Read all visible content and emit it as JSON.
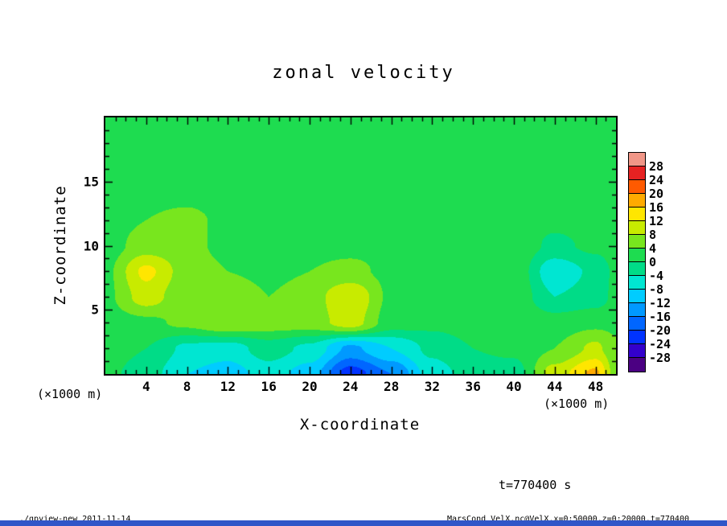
{
  "title": "zonal velocity",
  "axes": {
    "x_label": "X-coordinate",
    "z_label": "Z-coordinate",
    "x_unit": "(×1000 m)",
    "z_unit": "(×1000 m)",
    "x_ticks": [
      4,
      8,
      12,
      16,
      20,
      24,
      28,
      32,
      36,
      40,
      44,
      48
    ],
    "z_ticks": [
      5,
      10,
      15
    ]
  },
  "colorbar": {
    "labels": [
      28,
      24,
      20,
      16,
      12,
      8,
      4,
      0,
      -4,
      -8,
      -12,
      -16,
      -20,
      -24,
      -28
    ]
  },
  "annotations": {
    "time_label": "t=770400 s"
  },
  "footer": {
    "left": "./gpview-new  2011-11-14",
    "right": "MarsCond_VelX.nc@VelX,x=0:50000,z=0:20000,t=770400"
  },
  "chart_data": {
    "type": "heatmap",
    "title": "zonal velocity",
    "xlabel": "X-coordinate (×1000 m)",
    "ylabel": "Z-coordinate (×1000 m)",
    "xlim": [
      0,
      50
    ],
    "zlim": [
      0,
      20
    ],
    "legend_position": "right",
    "grid": false,
    "levels": [
      -28,
      -24,
      -20,
      -16,
      -12,
      -8,
      -4,
      0,
      4,
      8,
      12,
      16,
      20,
      24,
      28
    ],
    "palette": [
      "#4b0082",
      "#3300cc",
      "#0033ff",
      "#0066ff",
      "#0099ff",
      "#00ccff",
      "#00e6d2",
      "#00dc87",
      "#1edc50",
      "#78e61e",
      "#c8eb00",
      "#ffe600",
      "#ffaa00",
      "#ff5a00",
      "#e62222",
      "#f09687"
    ],
    "x": [
      0,
      4,
      8,
      12,
      16,
      20,
      24,
      28,
      32,
      36,
      40,
      44,
      48,
      50
    ],
    "z": [
      0,
      2,
      4,
      6,
      8,
      10,
      12,
      14,
      16,
      18,
      20
    ],
    "values": [
      [
        1,
        -2,
        -8,
        -10,
        -6,
        -10,
        -22,
        -16,
        -6,
        -2,
        -2,
        10,
        17,
        6
      ],
      [
        2,
        0,
        -5,
        -6,
        -2,
        -5,
        -13,
        -8,
        -3,
        0,
        1,
        4,
        9,
        5
      ],
      [
        2,
        3,
        5,
        8,
        6,
        6,
        10,
        2,
        1,
        2,
        4,
        2,
        3,
        3
      ],
      [
        3,
        10,
        5,
        7,
        4,
        6,
        12,
        3,
        2,
        3,
        3,
        -4,
        -2,
        1
      ],
      [
        3,
        13,
        6,
        4,
        3,
        4,
        5,
        3,
        2,
        3,
        3,
        -7,
        -3,
        1
      ],
      [
        2,
        6,
        5,
        3,
        2,
        3,
        3,
        3,
        2,
        2,
        3,
        -1,
        1,
        2
      ],
      [
        2,
        4,
        5,
        3,
        2,
        2,
        3,
        3,
        2,
        2,
        2,
        1,
        2,
        2
      ],
      [
        2,
        3,
        3,
        2,
        2,
        2,
        3,
        2,
        2,
        2,
        2,
        2,
        2,
        2
      ],
      [
        2,
        2,
        3,
        2,
        2,
        2,
        2,
        2,
        2,
        2,
        2,
        2,
        2,
        2
      ],
      [
        2,
        2,
        2,
        2,
        2,
        2,
        2,
        2,
        2,
        2,
        2,
        2,
        2,
        2
      ],
      [
        2,
        2,
        2,
        2,
        2,
        2,
        2,
        2,
        2,
        2,
        2,
        2,
        2,
        2
      ]
    ]
  }
}
